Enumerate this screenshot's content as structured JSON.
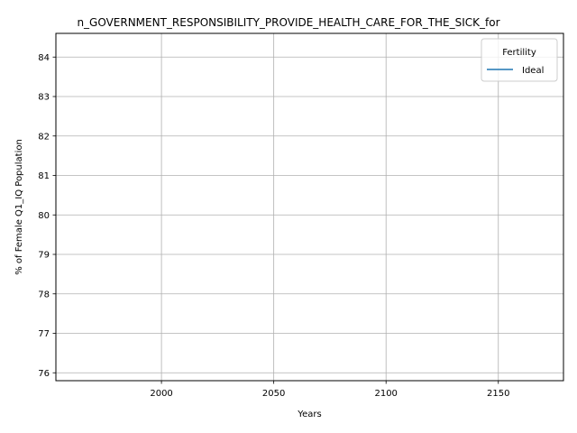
{
  "chart_data": {
    "type": "line",
    "title": "n_GOVERNMENT_RESPONSIBILITY_PROVIDE_HEALTH_CARE_FOR_THE_SICK_for",
    "xlabel": "Years",
    "ylabel": "% of Female Q1_IQ Population",
    "xlim": [
      1953,
      2179
    ],
    "ylim": [
      75.8,
      84.6
    ],
    "x_ticks": [
      2000,
      2050,
      2100,
      2150
    ],
    "y_ticks": [
      76,
      77,
      78,
      79,
      80,
      81,
      82,
      83,
      84
    ],
    "grid": true,
    "legend": {
      "title": "Fertility",
      "placement": "top-right",
      "entries": [
        "Ideal"
      ]
    },
    "series": [
      {
        "name": "Ideal",
        "color": "#1f77b4",
        "x": [],
        "y": []
      }
    ]
  }
}
